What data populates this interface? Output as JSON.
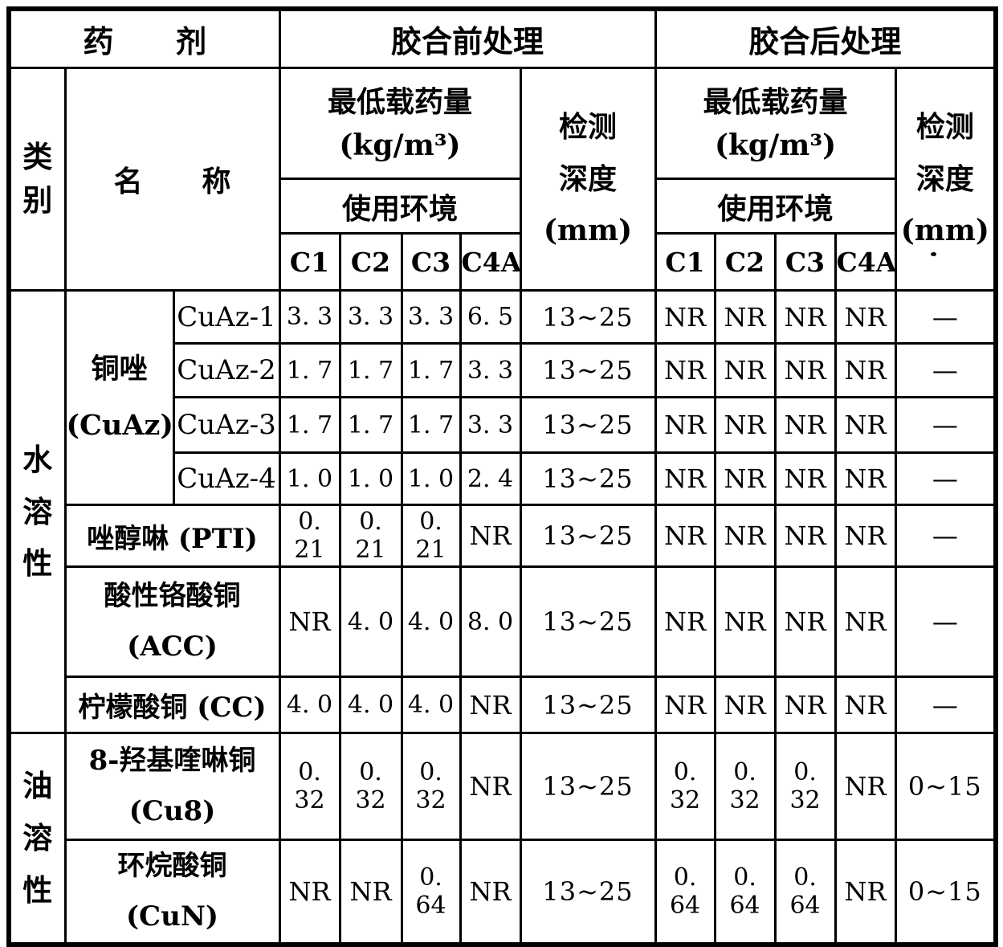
{
  "header": {
    "drug": "药 剂",
    "pre_treatment": "胶合前处理",
    "post_treatment": "胶合后处理",
    "category": "类别",
    "name": "名 称",
    "min_loading_line1": "最低载药量",
    "min_loading_line2": "(kg/m³)",
    "usage_env": "使用环境",
    "env_classes": [
      "C1",
      "C2",
      "C3",
      "C4A"
    ],
    "depth_line1": "检测",
    "depth_line2": "深度",
    "depth_line3": "(mm)"
  },
  "body": {
    "water_category": "水溶性",
    "oil_category": "油溶性",
    "cuaz_line1": "铜唑",
    "cuaz_line2": "(CuAz)",
    "rows": [
      {
        "name": "CuAz-1",
        "pre": [
          "3. 3",
          "3. 3",
          "3. 3",
          "6. 5"
        ],
        "pre_depth": "13~25",
        "post": [
          "NR",
          "NR",
          "NR",
          "NR"
        ],
        "post_depth": "—"
      },
      {
        "name": "CuAz-2",
        "pre": [
          "1. 7",
          "1. 7",
          "1. 7",
          "3. 3"
        ],
        "pre_depth": "13~25",
        "post": [
          "NR",
          "NR",
          "NR",
          "NR"
        ],
        "post_depth": "—"
      },
      {
        "name": "CuAz-3",
        "pre": [
          "1. 7",
          "1. 7",
          "1. 7",
          "3. 3"
        ],
        "pre_depth": "13~25",
        "post": [
          "NR",
          "NR",
          "NR",
          "NR"
        ],
        "post_depth": "—"
      },
      {
        "name": "CuAz-4",
        "pre": [
          "1. 0",
          "1. 0",
          "1. 0",
          "2. 4"
        ],
        "pre_depth": "13~25",
        "post": [
          "NR",
          "NR",
          "NR",
          "NR"
        ],
        "post_depth": "—"
      },
      {
        "name": "唑醇啉 (PTI)",
        "pre": [
          "0. 21",
          "0. 21",
          "0. 21",
          "NR"
        ],
        "pre_depth": "13~25",
        "post": [
          "NR",
          "NR",
          "NR",
          "NR"
        ],
        "post_depth": "—"
      },
      {
        "name_line1": "酸性铬酸铜",
        "name_line2": "(ACC)",
        "pre": [
          "NR",
          "4. 0",
          "4. 0",
          "8. 0"
        ],
        "pre_depth": "13~25",
        "post": [
          "NR",
          "NR",
          "NR",
          "NR"
        ],
        "post_depth": "—"
      },
      {
        "name": "柠檬酸铜 (CC)",
        "pre": [
          "4. 0",
          "4. 0",
          "4. 0",
          "NR"
        ],
        "pre_depth": "13~25",
        "post": [
          "NR",
          "NR",
          "NR",
          "NR"
        ],
        "post_depth": "—"
      },
      {
        "name_line1": "8-羟基喹啉铜",
        "name_line2": "(Cu8)",
        "pre": [
          "0. 32",
          "0. 32",
          "0. 32",
          "NR"
        ],
        "pre_depth": "13~25",
        "post": [
          "0. 32",
          "0. 32",
          "0. 32",
          "NR"
        ],
        "post_depth": "0~15"
      },
      {
        "name_line1": "环烷酸铜",
        "name_line2": "(CuN)",
        "pre": [
          "NR",
          "NR",
          "0. 64",
          "NR"
        ],
        "pre_depth": "13~25",
        "post": [
          "0. 64",
          "0. 64",
          "0. 64",
          "NR"
        ],
        "post_depth": "0~15"
      }
    ]
  }
}
